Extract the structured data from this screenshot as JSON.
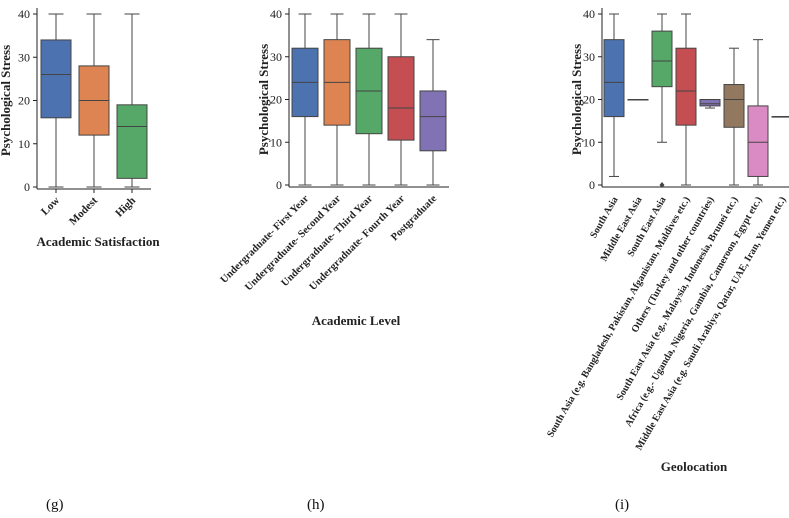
{
  "captions": {
    "g": "(g)",
    "h": "(h)",
    "i": "(i)"
  },
  "chart_data": [
    {
      "type": "box",
      "panel": "g",
      "xlabel": "Academic Satisfaction",
      "ylabel": "Psychological Stress",
      "ylim": [
        0,
        40
      ],
      "yticks": [
        0,
        10,
        20,
        30,
        40
      ],
      "categories": [
        "Low",
        "Modest",
        "High"
      ],
      "boxes": [
        {
          "whislo": 0,
          "q1": 16,
          "med": 26,
          "q3": 34,
          "whishi": 40,
          "fliers": [],
          "color": "#4c72b0"
        },
        {
          "whislo": 0,
          "q1": 12,
          "med": 20,
          "q3": 28,
          "whishi": 40,
          "fliers": [],
          "color": "#dd8452"
        },
        {
          "whislo": 0,
          "q1": 2,
          "med": 14,
          "q3": 19,
          "whishi": 40,
          "fliers": [],
          "color": "#55a868"
        }
      ]
    },
    {
      "type": "box",
      "panel": "h",
      "xlabel": "Academic Level",
      "ylabel": "Psychological Stress",
      "ylim": [
        0,
        40
      ],
      "yticks": [
        0,
        10,
        20,
        30,
        40
      ],
      "categories": [
        "Undergraduate- First Year",
        "Undergraduate- Second Year",
        "Undergraduate- Third Year",
        "Undergraduate- Fourth Year",
        "Postgraduate"
      ],
      "boxes": [
        {
          "whislo": 0,
          "q1": 16,
          "med": 24,
          "q3": 32,
          "whishi": 40,
          "fliers": [],
          "color": "#4c72b0"
        },
        {
          "whislo": 0,
          "q1": 14,
          "med": 24,
          "q3": 34,
          "whishi": 40,
          "fliers": [],
          "color": "#dd8452"
        },
        {
          "whislo": 0,
          "q1": 12,
          "med": 22,
          "q3": 32,
          "whishi": 40,
          "fliers": [],
          "color": "#55a868"
        },
        {
          "whislo": 0,
          "q1": 10.5,
          "med": 18,
          "q3": 30,
          "whishi": 40,
          "fliers": [],
          "color": "#c44e52"
        },
        {
          "whislo": 0,
          "q1": 8,
          "med": 16,
          "q3": 22,
          "whishi": 34,
          "fliers": [],
          "color": "#8172b3"
        }
      ]
    },
    {
      "type": "box",
      "panel": "i",
      "xlabel": "Geolocation",
      "ylabel": "Psychological Stress",
      "ylim": [
        0,
        40
      ],
      "yticks": [
        0,
        10,
        20,
        30,
        40
      ],
      "categories": [
        "South Asia",
        "Middle East Asia",
        "South East Asia",
        "South Asia (e.g. Bangladesh, Pakistan, Afganistan, Maldives etc.)",
        "Others (Turkey and other countries)",
        "South East Asia  (e.g., Malaysia, Indonesia, Brunei etc.)",
        "Africa (e.g.- Uganda, Nigeria, Gambia, Cameroon, Egypt etc.)",
        "Middle East Asia (e.g. Saudi Arabiya, Qatar, UAE, Iran, Yemen etc.)"
      ],
      "boxes": [
        {
          "whislo": 2,
          "q1": 16,
          "med": 24,
          "q3": 34,
          "whishi": 40,
          "fliers": [],
          "color": "#4c72b0"
        },
        {
          "whislo": 20,
          "q1": 20,
          "med": 20,
          "q3": 20,
          "whishi": 20,
          "fliers": [],
          "color": "#dd8452"
        },
        {
          "whislo": 10,
          "q1": 23,
          "med": 29,
          "q3": 36,
          "whishi": 40,
          "fliers": [
            0
          ],
          "color": "#55a868"
        },
        {
          "whislo": 0,
          "q1": 14,
          "med": 22,
          "q3": 32,
          "whishi": 40,
          "fliers": [],
          "color": "#c44e52"
        },
        {
          "whislo": 18,
          "q1": 18.5,
          "med": 19,
          "q3": 20,
          "whishi": 20,
          "fliers": [],
          "color": "#8172b3"
        },
        {
          "whislo": 0,
          "q1": 13.5,
          "med": 20,
          "q3": 23.5,
          "whishi": 32,
          "fliers": [],
          "color": "#937860"
        },
        {
          "whislo": 0,
          "q1": 2,
          "med": 10,
          "q3": 18.5,
          "whishi": 34,
          "fliers": [],
          "color": "#da8bc3"
        },
        {
          "whislo": 16,
          "q1": 16,
          "med": 16,
          "q3": 16,
          "whishi": 16,
          "fliers": [],
          "color": "#8c8c8c"
        }
      ]
    }
  ]
}
